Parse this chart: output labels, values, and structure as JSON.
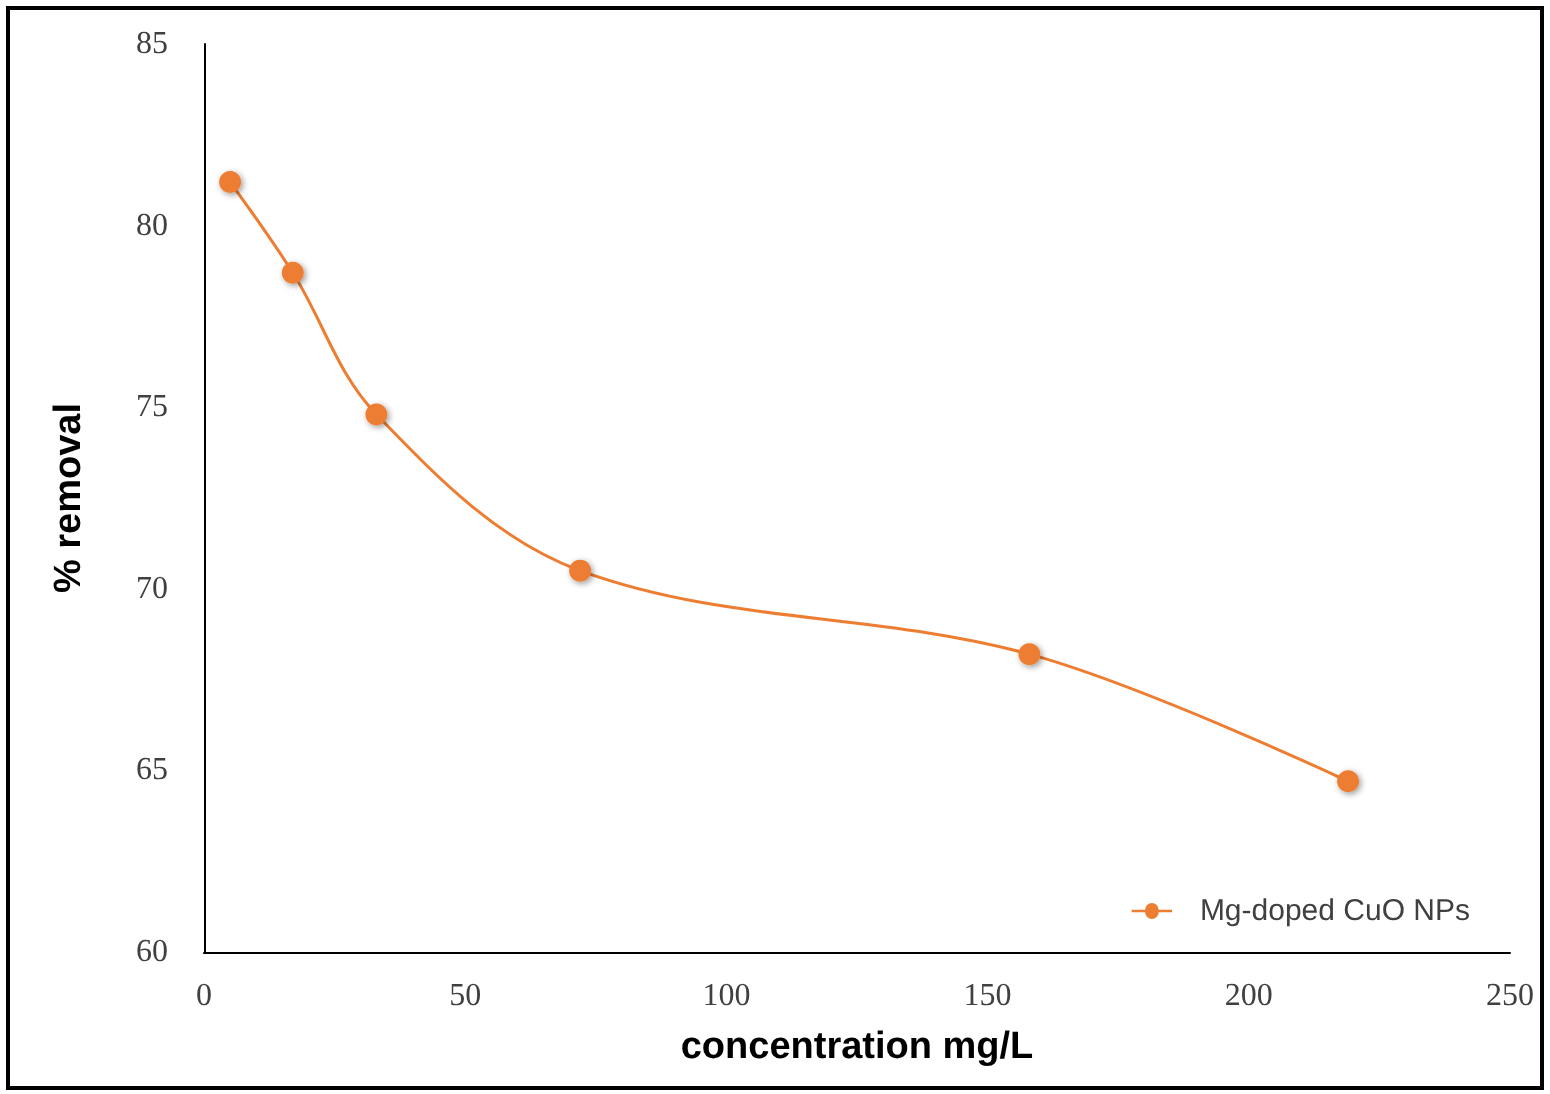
{
  "chart_data": {
    "type": "line",
    "xlabel": "concentration mg/L",
    "ylabel": "% removal",
    "x": [
      5,
      17,
      33,
      72,
      158,
      219
    ],
    "series": [
      {
        "name": "Mg-doped CuO NPs",
        "color": "#ed7d31",
        "values": [
          81.2,
          78.7,
          74.8,
          70.5,
          68.2,
          64.7
        ]
      }
    ],
    "xlim": [
      0,
      250
    ],
    "xticks": [
      0,
      50,
      100,
      150,
      200,
      250
    ],
    "ylim": [
      60,
      85
    ],
    "yticks": [
      60,
      65,
      70,
      75,
      80,
      85
    ],
    "grid": false,
    "legend": "bottom right",
    "marker": "circle",
    "line_style": "solid"
  }
}
